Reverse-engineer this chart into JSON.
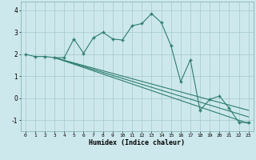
{
  "xlabel": "Humidex (Indice chaleur)",
  "bg_color": "#cde8ec",
  "line_color": "#2e7d6e",
  "grid_color": "#aacdd4",
  "xlim": [
    -0.5,
    23.5
  ],
  "ylim": [
    -1.5,
    4.4
  ],
  "yticks": [
    -1,
    0,
    1,
    2,
    3,
    4
  ],
  "xticks": [
    0,
    1,
    2,
    3,
    4,
    5,
    6,
    7,
    8,
    9,
    10,
    11,
    12,
    13,
    14,
    15,
    16,
    17,
    18,
    19,
    20,
    21,
    22,
    23
  ],
  "curve1_x": [
    0,
    1,
    2,
    3,
    4,
    5,
    6,
    7,
    8,
    9,
    10,
    11,
    12,
    13,
    14,
    15,
    16,
    17,
    18,
    19,
    20,
    21,
    22,
    23
  ],
  "curve1_y": [
    2.0,
    1.9,
    1.9,
    1.85,
    1.85,
    2.7,
    2.05,
    2.75,
    3.0,
    2.7,
    2.65,
    3.3,
    3.4,
    3.85,
    3.45,
    2.4,
    0.75,
    1.75,
    -0.55,
    -0.05,
    0.1,
    -0.45,
    -1.1,
    -1.1
  ],
  "line2_x": [
    3,
    23
  ],
  "line2_y": [
    1.85,
    -1.15
  ],
  "line3_x": [
    3,
    23
  ],
  "line3_y": [
    1.85,
    -0.85
  ],
  "line4_x": [
    3,
    23
  ],
  "line4_y": [
    1.85,
    -0.55
  ]
}
